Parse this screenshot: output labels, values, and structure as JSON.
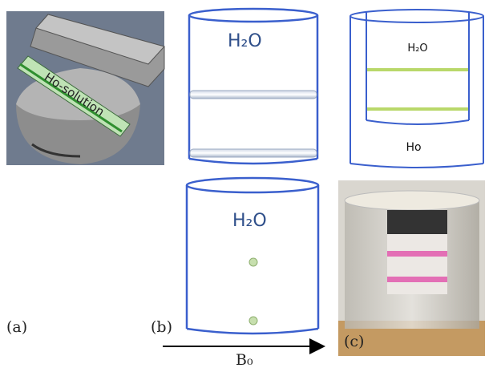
{
  "panel_a": {
    "tube_label": "Ho-solution",
    "label": "(a)"
  },
  "panel_b": {
    "top_text": "H₂O",
    "bottom_text": "H₂O",
    "label": "(b)"
  },
  "panel_right": {
    "inner_text": "H₂O",
    "outer_text": "Ho"
  },
  "panel_c": {
    "label": "(c)"
  },
  "field": {
    "label": "B₀"
  }
}
